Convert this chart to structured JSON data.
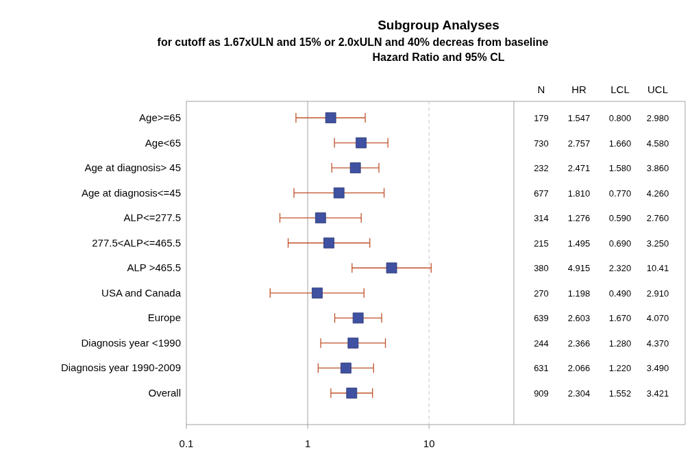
{
  "chart_data": {
    "type": "scatter",
    "orientation": "horizontal",
    "title": "Subgroup Analyses",
    "subtitle": "for cutoff as 1.67xULN and 15% or 2.0xULN and 40% decreas from baseline\nHazard Ratio and 95% CL",
    "categories": [
      "Age>=65",
      "Age<65",
      "Age at diagnosis> 45",
      "Age at diagnosis<=45",
      "ALP<=277.5",
      "277.5<ALP<=465.5",
      "ALP >465.5",
      "USA and Canada",
      "Europe",
      "Diagnosis year <1990",
      "Diagnosis year 1990-2009",
      "Overall"
    ],
    "values": [
      1.547,
      2.757,
      2.471,
      1.81,
      1.276,
      1.495,
      4.915,
      1.198,
      2.603,
      2.366,
      2.066,
      2.304
    ],
    "errors": [
      [
        0.8,
        2.98
      ],
      [
        1.66,
        4.58
      ],
      [
        1.58,
        3.86
      ],
      [
        0.77,
        4.26
      ],
      [
        0.59,
        2.76
      ],
      [
        0.69,
        3.25
      ],
      [
        2.32,
        10.41
      ],
      [
        0.49,
        2.91
      ],
      [
        1.67,
        4.07
      ],
      [
        1.28,
        4.37
      ],
      [
        1.22,
        3.49
      ],
      [
        1.552,
        3.421
      ]
    ],
    "value_labels": [
      "1.547",
      "2.757",
      "2.471",
      "1.810",
      "1.276",
      "1.495",
      "4.915",
      "1.198",
      "2.603",
      "2.366",
      "2.066",
      "2.304"
    ],
    "color": "#3f51a0",
    "marker": "square",
    "log": "x",
    "xlim": [
      0.1,
      50
    ],
    "xticks": [
      0.1,
      1,
      10
    ],
    "ref_lines": [
      {
        "axis": "x",
        "value": 1,
        "color": "#a0a0a0",
        "line_style": "solid"
      },
      {
        "axis": "x",
        "value": 10,
        "color": "#c8c8c8",
        "line_style": "dashed"
      }
    ],
    "annotations": [
      "N",
      "HR",
      "LCL",
      "UCL",
      "179",
      "0.800",
      "2.980",
      "730",
      "1.660",
      "4.580",
      "232",
      "1.580",
      "3.860",
      "677",
      "0.770",
      "4.260",
      "314",
      "0.590",
      "2.760",
      "215",
      "0.690",
      "3.250",
      "380",
      "2.320",
      "10.41",
      "270",
      "0.490",
      "2.910",
      "639",
      "1.670",
      "4.070",
      "244",
      "1.280",
      "4.370",
      "631",
      "1.220",
      "3.490",
      "909",
      "1.552",
      "3.421"
    ],
    "tick_labels": "x"
  }
}
